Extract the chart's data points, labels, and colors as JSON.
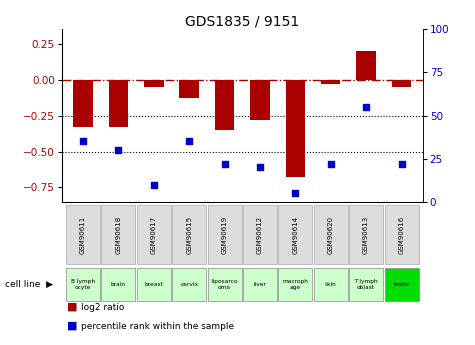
{
  "title": "GDS1835 / 9151",
  "gsm_labels": [
    "GSM90611",
    "GSM90618",
    "GSM90617",
    "GSM90615",
    "GSM90619",
    "GSM90612",
    "GSM90614",
    "GSM90620",
    "GSM90613",
    "GSM90616"
  ],
  "cell_lines": [
    "B lymph\nocyte",
    "brain",
    "breast",
    "cervix",
    "liposarco\noma",
    "liver",
    "macroph\nage",
    "skin",
    "T lymph\noblast",
    "testis"
  ],
  "cell_line_colors": [
    "#ccffcc",
    "#ccffcc",
    "#ccffcc",
    "#ccffcc",
    "#ccffcc",
    "#ccffcc",
    "#ccffcc",
    "#ccffcc",
    "#ccffcc",
    "#00dd00"
  ],
  "log2_ratio": [
    -0.33,
    -0.33,
    -0.05,
    -0.13,
    -0.35,
    -0.28,
    -0.68,
    -0.03,
    0.2,
    -0.05
  ],
  "percentile_rank": [
    35,
    30,
    10,
    35,
    22,
    20,
    5,
    22,
    55,
    22
  ],
  "bar_color": "#aa0000",
  "dot_color": "#0000cc",
  "ylim_left": [
    -0.85,
    0.35
  ],
  "ylim_right": [
    0,
    100
  ],
  "yticks_left": [
    -0.75,
    -0.5,
    -0.25,
    0,
    0.25
  ],
  "yticks_right": [
    0,
    25,
    50,
    75,
    100
  ],
  "dotted_lines": [
    -0.25,
    -0.5
  ],
  "title_fontsize": 10,
  "tick_label_fontsize": 7.5
}
